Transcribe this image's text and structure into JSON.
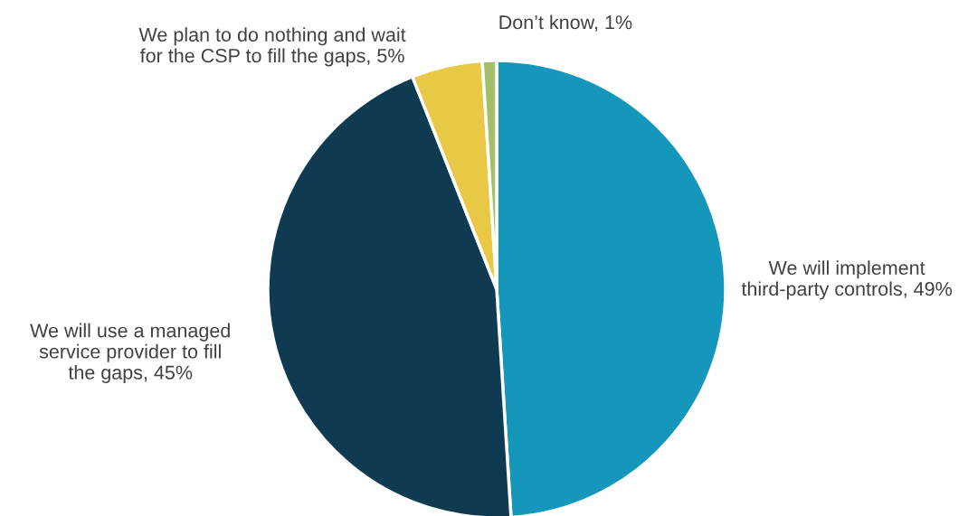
{
  "chart_data": {
    "type": "pie",
    "categories": [
      "We will implement\nthird-party controls",
      "We will use a managed\nservice provider to fill\nthe gaps",
      "We plan to do nothing and wait\nfor the CSP to fill the gaps",
      "Don’t know"
    ],
    "values": [
      49,
      45,
      5,
      1
    ],
    "value_labels": [
      "49%",
      "45%",
      "5%",
      "1%"
    ],
    "colors": [
      "#1596bb",
      "#0e3a52",
      "#e8c844",
      "#a3bf6a"
    ],
    "legend": false
  }
}
